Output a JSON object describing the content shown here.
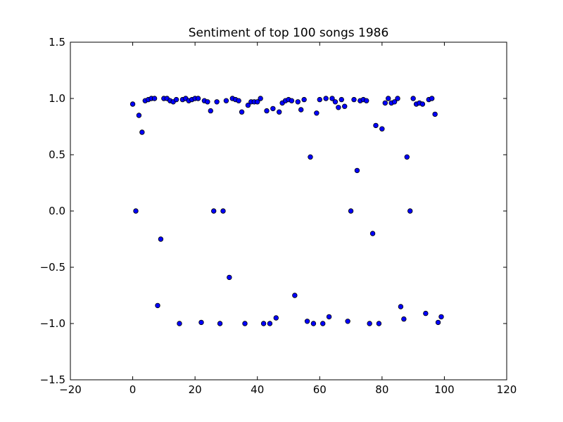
{
  "chart_data": {
    "type": "scatter",
    "title": "Sentiment of top 100 songs 1986",
    "xlabel": "",
    "ylabel": "",
    "xlim": [
      -20,
      120
    ],
    "ylim": [
      -1.5,
      1.5
    ],
    "x_ticks": [
      -20,
      0,
      20,
      40,
      60,
      80,
      100,
      120
    ],
    "y_ticks": [
      -1.5,
      -1.0,
      -0.5,
      0.0,
      0.5,
      1.0,
      1.5
    ],
    "x_tick_labels": [
      "−20",
      "0",
      "20",
      "40",
      "60",
      "80",
      "100",
      "120"
    ],
    "y_tick_labels": [
      "−1.5",
      "−1.0",
      "−0.5",
      "0.0",
      "0.5",
      "1.0",
      "1.5"
    ],
    "grid": false,
    "legend": "none",
    "marker_color": "#0000ff",
    "marker_edge_color": "#000000",
    "points": [
      [
        0,
        0.95
      ],
      [
        1,
        0.0
      ],
      [
        2,
        0.85
      ],
      [
        3,
        0.7
      ],
      [
        4,
        0.98
      ],
      [
        5,
        0.99
      ],
      [
        6,
        1.0
      ],
      [
        7,
        1.0
      ],
      [
        8,
        -0.84
      ],
      [
        9,
        -0.25
      ],
      [
        10,
        1.0
      ],
      [
        11,
        1.0
      ],
      [
        12,
        0.98
      ],
      [
        13,
        0.97
      ],
      [
        14,
        0.99
      ],
      [
        15,
        -1.0
      ],
      [
        16,
        0.99
      ],
      [
        17,
        1.0
      ],
      [
        18,
        0.98
      ],
      [
        19,
        0.99
      ],
      [
        20,
        1.0
      ],
      [
        21,
        1.0
      ],
      [
        22,
        -0.99
      ],
      [
        23,
        0.98
      ],
      [
        24,
        0.97
      ],
      [
        25,
        0.89
      ],
      [
        26,
        0.0
      ],
      [
        27,
        0.97
      ],
      [
        28,
        -1.0
      ],
      [
        29,
        0.0
      ],
      [
        30,
        0.98
      ],
      [
        31,
        -0.59
      ],
      [
        32,
        1.0
      ],
      [
        33,
        0.99
      ],
      [
        34,
        0.98
      ],
      [
        35,
        0.88
      ],
      [
        36,
        -1.0
      ],
      [
        37,
        0.94
      ],
      [
        38,
        0.97
      ],
      [
        39,
        0.97
      ],
      [
        40,
        0.97
      ],
      [
        41,
        1.0
      ],
      [
        42,
        -1.0
      ],
      [
        43,
        0.89
      ],
      [
        44,
        -1.0
      ],
      [
        45,
        0.91
      ],
      [
        46,
        -0.95
      ],
      [
        47,
        0.88
      ],
      [
        48,
        0.96
      ],
      [
        49,
        0.98
      ],
      [
        50,
        0.99
      ],
      [
        51,
        0.98
      ],
      [
        52,
        -0.75
      ],
      [
        53,
        0.97
      ],
      [
        54,
        0.9
      ],
      [
        55,
        0.99
      ],
      [
        56,
        -0.98
      ],
      [
        57,
        0.48
      ],
      [
        58,
        -1.0
      ],
      [
        59,
        0.87
      ],
      [
        60,
        0.99
      ],
      [
        61,
        -1.0
      ],
      [
        62,
        1.0
      ],
      [
        63,
        -0.94
      ],
      [
        64,
        1.0
      ],
      [
        65,
        0.97
      ],
      [
        66,
        0.92
      ],
      [
        67,
        0.99
      ],
      [
        68,
        0.93
      ],
      [
        69,
        -0.98
      ],
      [
        70,
        0.0
      ],
      [
        71,
        0.99
      ],
      [
        72,
        0.36
      ],
      [
        73,
        0.98
      ],
      [
        74,
        0.99
      ],
      [
        75,
        0.98
      ],
      [
        76,
        -1.0
      ],
      [
        77,
        -0.2
      ],
      [
        78,
        0.76
      ],
      [
        79,
        -1.0
      ],
      [
        80,
        0.73
      ],
      [
        81,
        0.96
      ],
      [
        82,
        1.0
      ],
      [
        83,
        0.96
      ],
      [
        84,
        0.97
      ],
      [
        85,
        1.0
      ],
      [
        86,
        -0.85
      ],
      [
        87,
        -0.96
      ],
      [
        88,
        0.48
      ],
      [
        89,
        0.0
      ],
      [
        90,
        1.0
      ],
      [
        91,
        0.95
      ],
      [
        92,
        0.96
      ],
      [
        93,
        0.95
      ],
      [
        94,
        -0.91
      ],
      [
        95,
        0.99
      ],
      [
        96,
        1.0
      ],
      [
        97,
        0.86
      ],
      [
        98,
        -0.99
      ],
      [
        99,
        -0.94
      ]
    ]
  }
}
